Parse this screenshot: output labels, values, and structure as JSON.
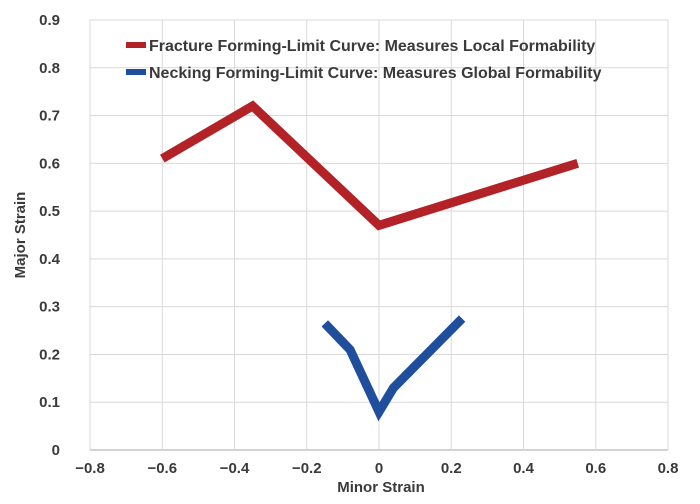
{
  "chart_data": {
    "type": "line",
    "xlabel": "Minor Strain",
    "ylabel": "Major Strain",
    "xlim": [
      -0.8,
      0.8
    ],
    "ylim": [
      0,
      0.9
    ],
    "x_ticks": [
      -0.8,
      -0.6,
      -0.4,
      -0.2,
      0,
      0.2,
      0.4,
      0.6,
      0.8
    ],
    "x_tick_labels": [
      "−0.8",
      "−0.6",
      "−0.4",
      "−0.2",
      "0",
      "0.2",
      "0.4",
      "0.6",
      "0.8"
    ],
    "y_ticks": [
      0,
      0.1,
      0.2,
      0.3,
      0.4,
      0.5,
      0.6,
      0.7,
      0.8,
      0.9
    ],
    "y_tick_labels": [
      "0",
      "0.1",
      "0.2",
      "0.3",
      "0.4",
      "0.5",
      "0.6",
      "0.7",
      "0.8",
      "0.9"
    ],
    "grid": true,
    "legend_position": "top",
    "series": [
      {
        "name": "Fracture Forming-Limit Curve: Measures Local Formability",
        "color": "#b22226",
        "x": [
          -0.6,
          -0.35,
          0,
          0.55
        ],
        "y": [
          0.61,
          0.72,
          0.47,
          0.6
        ]
      },
      {
        "name": "Necking Forming-Limit Curve: Measures Global Formability",
        "color": "#1f4e9c",
        "x": [
          -0.15,
          -0.08,
          0,
          0.04,
          0.23
        ],
        "y": [
          0.265,
          0.21,
          0.08,
          0.13,
          0.275
        ]
      }
    ]
  }
}
